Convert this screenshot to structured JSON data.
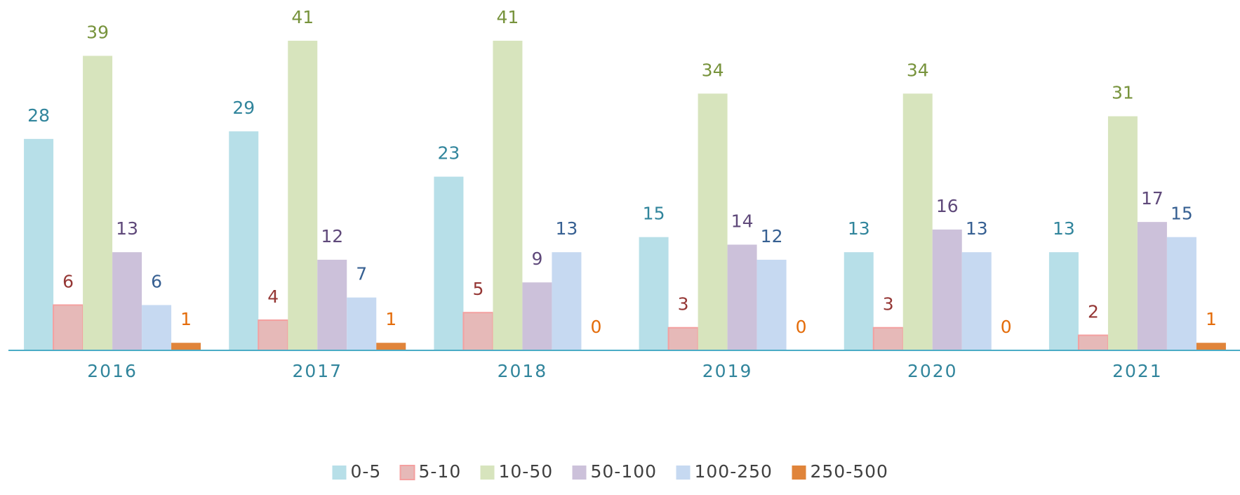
{
  "chart_data": {
    "type": "bar",
    "categories": [
      "2016",
      "2017",
      "2018",
      "2019",
      "2020",
      "2021"
    ],
    "ylim": [
      0,
      45
    ],
    "series": [
      {
        "name": "0-5",
        "color": "#b7dfe8",
        "label_color": "#31859c",
        "values": [
          28,
          29,
          23,
          15,
          13,
          13
        ]
      },
      {
        "name": "5-10",
        "color": "#e6b9b8",
        "label_color": "#953735",
        "values": [
          6,
          4,
          5,
          3,
          3,
          2
        ]
      },
      {
        "name": "10-50",
        "color": "#d7e4bd",
        "label_color": "#77933c",
        "values": [
          39,
          41,
          41,
          34,
          34,
          31
        ]
      },
      {
        "name": "50-100",
        "color": "#ccc1da",
        "label_color": "#5f497a",
        "values": [
          13,
          12,
          9,
          14,
          16,
          17
        ]
      },
      {
        "name": "100-250",
        "color": "#c6d9f1",
        "label_color": "#376092",
        "values": [
          6,
          7,
          13,
          12,
          13,
          15
        ]
      },
      {
        "name": "250-500",
        "color": "#e0843a",
        "label_color": "#e46c0a",
        "values": [
          1,
          1,
          0,
          0,
          0,
          1
        ]
      }
    ],
    "legend": "bottom"
  }
}
